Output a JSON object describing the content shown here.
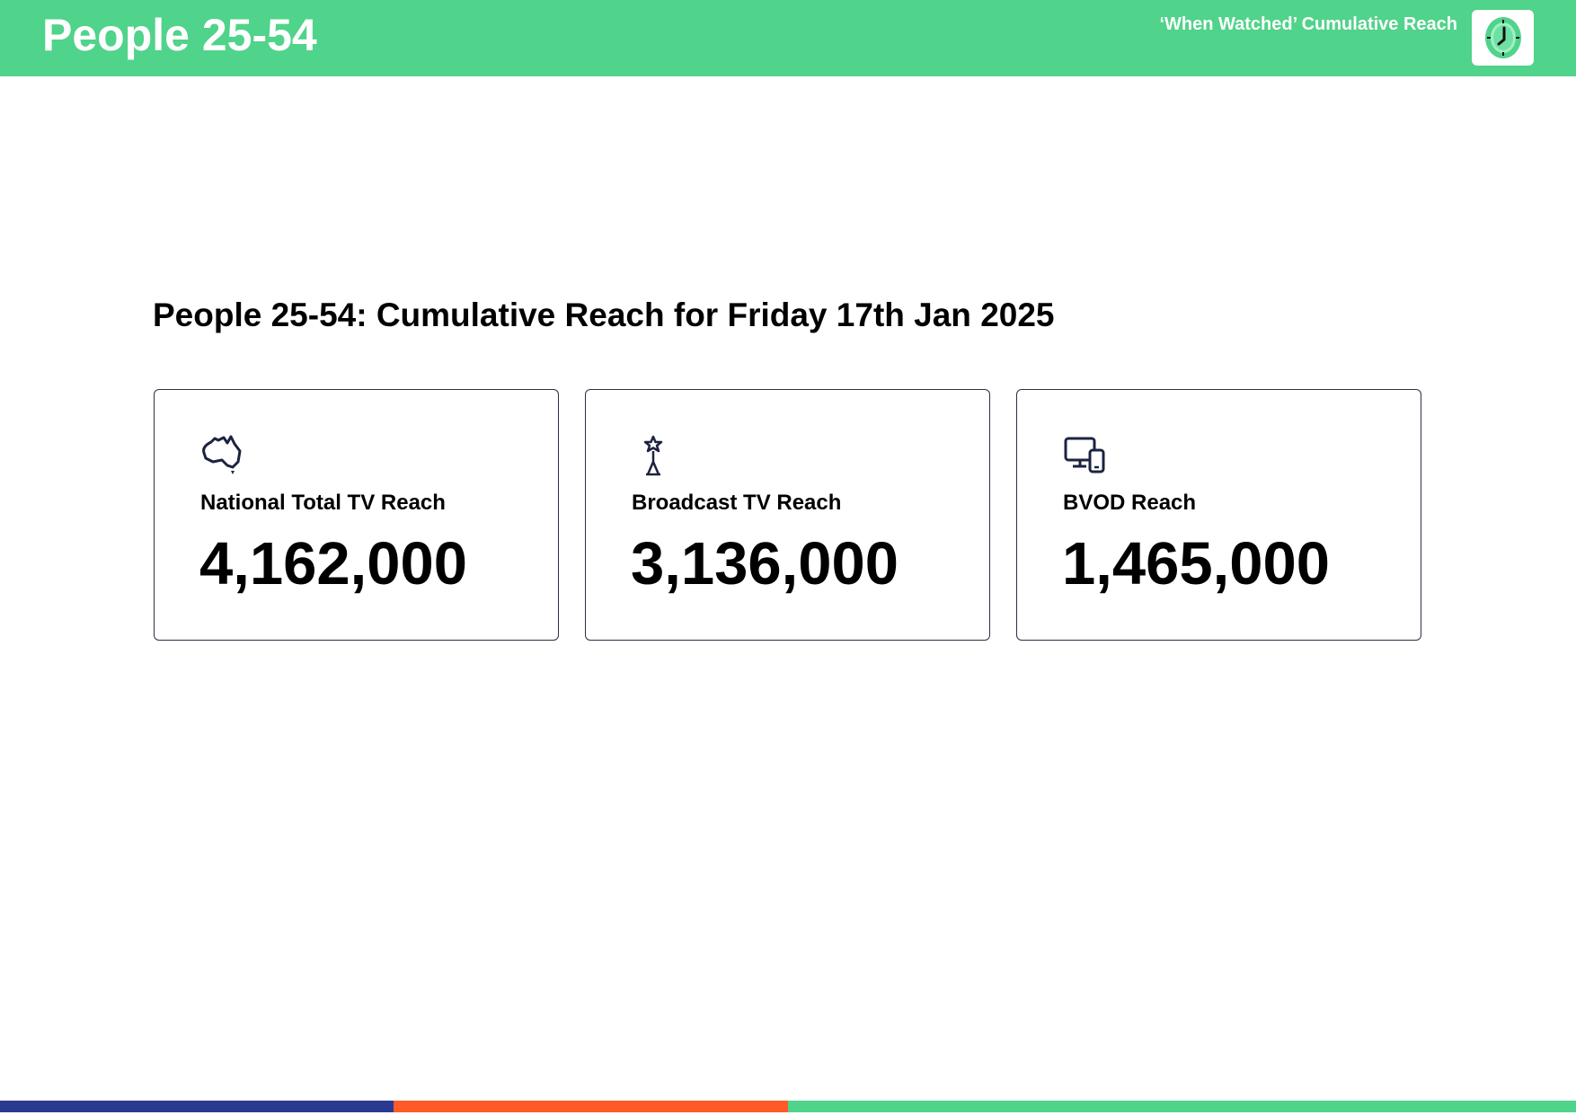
{
  "header": {
    "title": "People 25-54",
    "subtitle": "‘When Watched’ Cumulative Reach",
    "logo_icon": "clock-icon"
  },
  "page_title": "People 25-54: Cumulative Reach for Friday 17th Jan 2025",
  "cards": [
    {
      "icon": "australia-map-icon",
      "label": "National Total TV Reach",
      "value": "4,162,000"
    },
    {
      "icon": "broadcast-tower-icon",
      "label": "Broadcast TV Reach",
      "value": "3,136,000"
    },
    {
      "icon": "devices-icon",
      "label": "BVOD Reach",
      "value": "1,465,000"
    }
  ],
  "colors": {
    "header": "#50d38a",
    "footer_blue": "#2b3990",
    "footer_orange": "#ff5a28",
    "footer_green": "#50d38a",
    "icon": "#1c2340"
  }
}
